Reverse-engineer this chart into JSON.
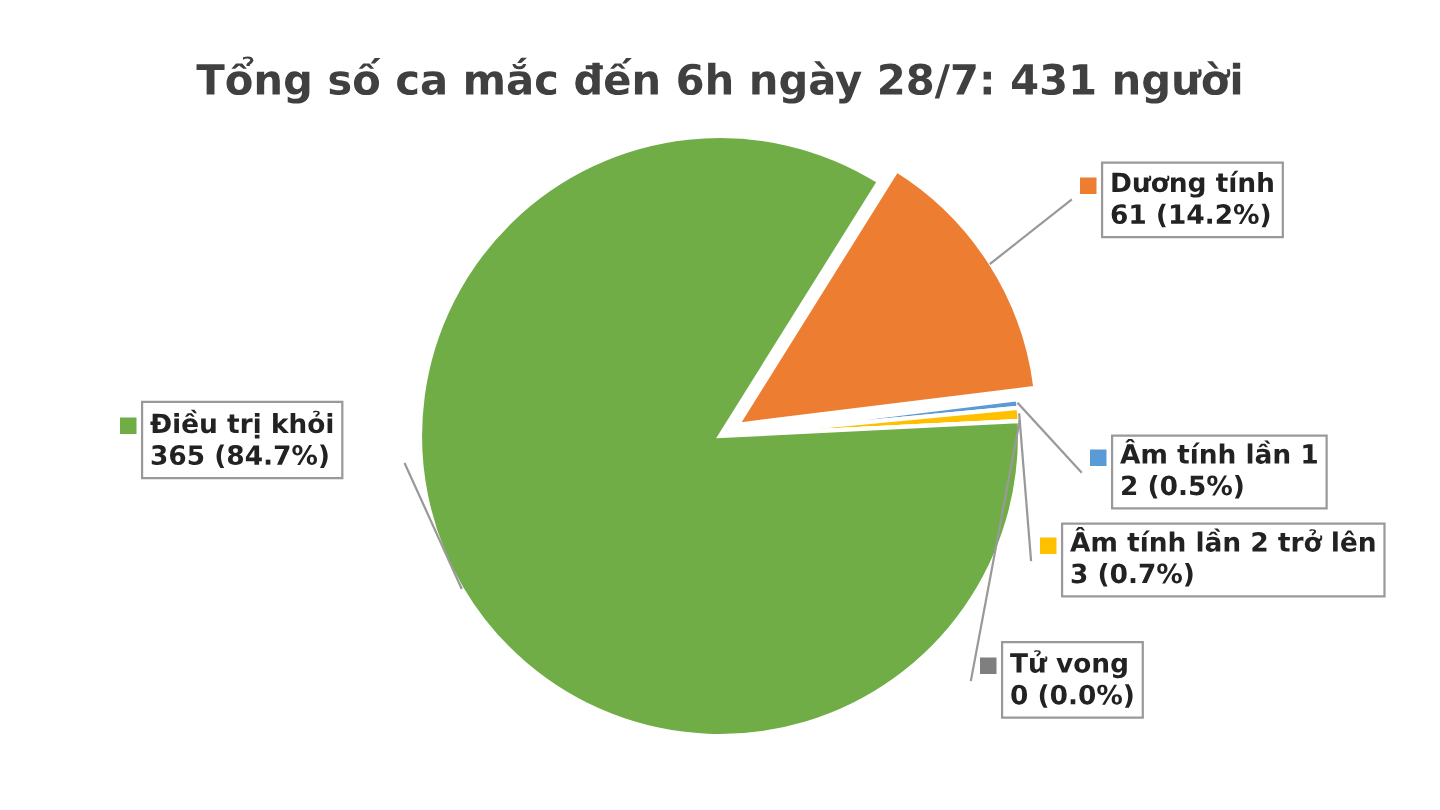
{
  "chart_data": {
    "type": "pie",
    "title": "Tổng số ca mắc đến 6h ngày 28/7: 431 người",
    "categories": [
      "Dương tính",
      "Âm tính lần 1",
      "Âm tính lần 2 trở lên",
      "Tử vong",
      "Điều trị khỏi"
    ],
    "values": [
      61,
      2,
      3,
      0,
      365
    ],
    "value_labels": [
      "61 (14.2%)",
      "2 (0.5%)",
      "3 (0.7%)",
      "0 (0.0%)",
      "365 (84.7%)"
    ],
    "colors": [
      "#ed7d31",
      "#5b9bd5",
      "#ffc000",
      "#7f7f7f",
      "#70ad47"
    ],
    "legend": "right"
  }
}
